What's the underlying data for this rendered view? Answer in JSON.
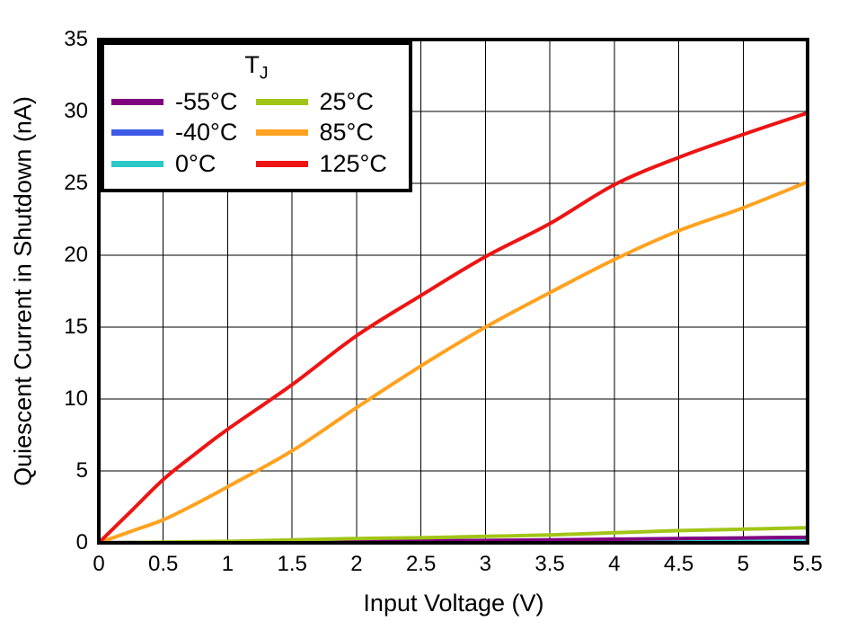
{
  "chart_data": {
    "type": "line",
    "title": "",
    "xlabel": "Input Voltage (V)",
    "ylabel": "Quiescent Current in Shutdown (nA)",
    "xlim": [
      0,
      5.5
    ],
    "ylim": [
      0,
      35
    ],
    "xticks": [
      0,
      0.5,
      1,
      1.5,
      2,
      2.5,
      3,
      3.5,
      4,
      4.5,
      5,
      5.5
    ],
    "yticks": [
      0,
      5,
      10,
      15,
      20,
      25,
      30,
      35
    ],
    "grid": true,
    "legend": {
      "title_main": "T",
      "title_sub": "J",
      "position": "top-left",
      "columns": 2
    },
    "x": [
      0,
      0.25,
      0.5,
      0.75,
      1,
      1.5,
      2,
      2.5,
      3,
      3.5,
      4,
      4.5,
      5,
      5.5
    ],
    "series": [
      {
        "name": "-55°C",
        "color": "#800080",
        "values": [
          0,
          0.01,
          0.02,
          0.03,
          0.05,
          0.08,
          0.1,
          0.13,
          0.16,
          0.2,
          0.25,
          0.3,
          0.34,
          0.38
        ]
      },
      {
        "name": "-40°C",
        "color": "#3D5BE8",
        "values": [
          0,
          0.01,
          0.01,
          0.02,
          0.03,
          0.05,
          0.06,
          0.08,
          0.1,
          0.12,
          0.14,
          0.16,
          0.18,
          0.2
        ]
      },
      {
        "name": "0°C",
        "color": "#2CC8C8",
        "values": [
          0,
          0.01,
          0.01,
          0.02,
          0.04,
          0.06,
          0.08,
          0.11,
          0.13,
          0.16,
          0.19,
          0.21,
          0.23,
          0.26
        ]
      },
      {
        "name": "25°C",
        "color": "#A1C517",
        "values": [
          0,
          0.02,
          0.05,
          0.08,
          0.1,
          0.2,
          0.3,
          0.35,
          0.45,
          0.55,
          0.7,
          0.85,
          0.95,
          1.05
        ]
      },
      {
        "name": "85°C",
        "color": "#FFA21F",
        "values": [
          0,
          0.8,
          1.6,
          2.7,
          3.9,
          6.4,
          9.4,
          12.3,
          15.0,
          17.4,
          19.7,
          21.7,
          23.3,
          25.1
        ]
      },
      {
        "name": "125°C",
        "color": "#ED1414",
        "values": [
          0,
          2.2,
          4.4,
          6.2,
          7.9,
          11.0,
          14.4,
          17.2,
          19.9,
          22.2,
          24.9,
          26.8,
          28.4,
          29.9
        ]
      }
    ],
    "draw_order": [
      1,
      2,
      0,
      3,
      4,
      5
    ]
  },
  "colors": {
    "background": "#FFFFFF",
    "grid": "#000000",
    "plot_border": "#000000",
    "text": "#000000"
  }
}
